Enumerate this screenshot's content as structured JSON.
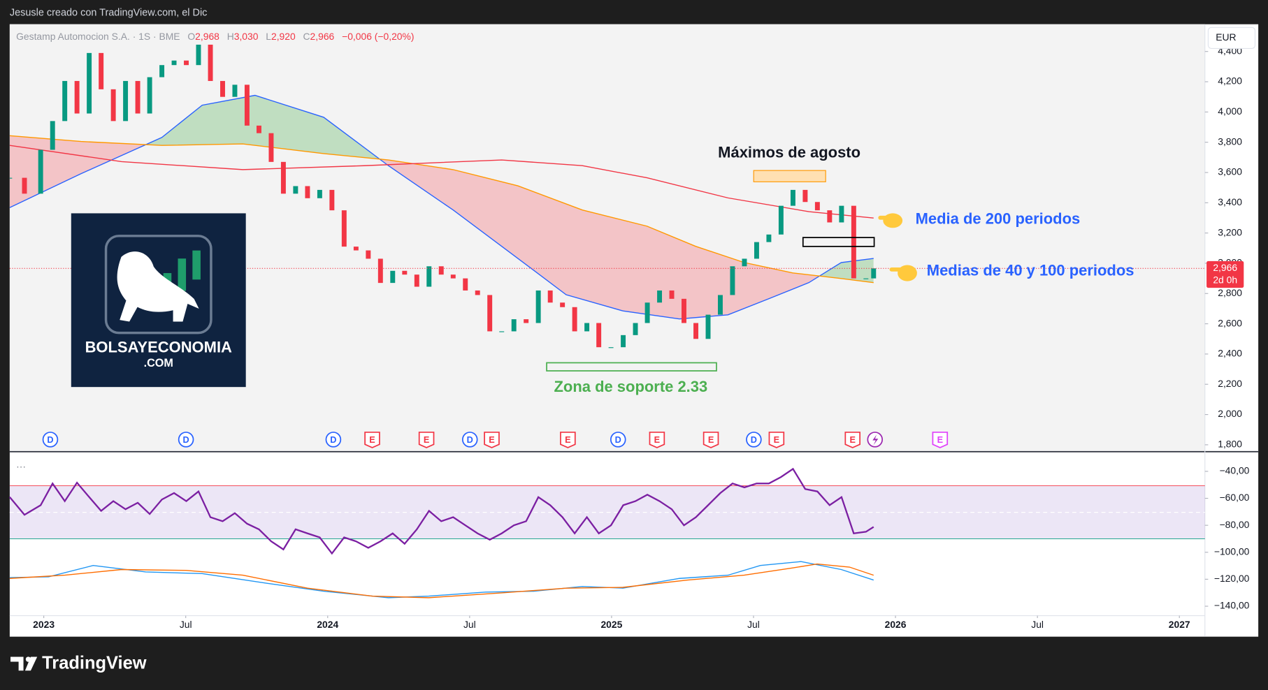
{
  "header": {
    "caption": "Jesusle creado con TradingView.com, el Dic",
    "currency": "EUR",
    "brand": "TradingView",
    "legend": {
      "name": "Gestamp Automocion S.A. · 1S · BME",
      "ohlc_labels": [
        "O",
        "H",
        "L",
        "C"
      ],
      "o": "2,968",
      "h": "3,030",
      "l": "2,920",
      "c": "2,966",
      "change": "−0,006 (−0,20%)"
    },
    "last_price_label": "2,966",
    "countdown": "2d 0h"
  },
  "logo": {
    "name": "BOLSAYECONOMIA",
    "domain": ".COM"
  },
  "chart_data": {
    "type": "candlestick",
    "up_color": "#089981",
    "down_color": "#f23645",
    "xlim": [
      2022.88,
      2027.09
    ],
    "xticks": [
      2023,
      {
        "value": 2023.5,
        "label": "Jul"
      },
      2024,
      {
        "value": 2024.5,
        "label": "Jul"
      },
      2025,
      {
        "value": 2025.5,
        "label": "Jul"
      },
      2026,
      {
        "value": 2026.5,
        "label": "Jul"
      },
      2027
    ],
    "ylim": [
      1760,
      4580
    ],
    "yticks": [
      {
        "value": 1800,
        "label": "1,800"
      },
      {
        "value": 2000,
        "label": "2,000"
      },
      {
        "value": 2200,
        "label": "2,200"
      },
      {
        "value": 2400,
        "label": "2,400"
      },
      {
        "value": 2600,
        "label": "2,600"
      },
      {
        "value": 2800,
        "label": "2,800"
      },
      {
        "value": 3000,
        "label": "3,000"
      },
      {
        "value": 3200,
        "label": "3,200"
      },
      {
        "value": 3400,
        "label": "3,400"
      },
      {
        "value": 3600,
        "label": "3,600"
      },
      {
        "value": 3800,
        "label": "3,800"
      },
      {
        "value": 4000,
        "label": "4,000"
      },
      {
        "value": 4200,
        "label": "4,200"
      },
      {
        "value": 4400,
        "label": "4,400"
      }
    ],
    "x": [
      2022.88,
      2022.932,
      2022.989,
      2023.031,
      2023.074,
      2023.117,
      2023.16,
      2023.202,
      2023.245,
      2023.288,
      2023.331,
      2023.373,
      2023.416,
      2023.459,
      2023.502,
      2023.545,
      2023.587,
      2023.63,
      2023.673,
      2023.716,
      2023.758,
      2023.801,
      2023.844,
      2023.887,
      2023.929,
      2023.972,
      2024.015,
      2024.058,
      2024.1,
      2024.143,
      2024.186,
      2024.229,
      2024.271,
      2024.314,
      2024.357,
      2024.4,
      2024.442,
      2024.485,
      2024.528,
      2024.571,
      2024.613,
      2024.656,
      2024.699,
      2024.742,
      2024.784,
      2024.827,
      2024.87,
      2024.913,
      2024.955,
      2024.998,
      2025.041,
      2025.084,
      2025.126,
      2025.169,
      2025.212,
      2025.255,
      2025.297,
      2025.34,
      2025.383,
      2025.426,
      2025.468,
      2025.511,
      2025.554,
      2025.597,
      2025.639,
      2025.682,
      2025.725,
      2025.768,
      2025.81,
      2025.853,
      2025.896,
      2025.923
    ],
    "values": [
      3565,
      3460,
      3750,
      3940,
      4205,
      3990,
      4390,
      4150,
      3940,
      4205,
      3990,
      4230,
      4310,
      4340,
      4310,
      4445,
      4205,
      4100,
      4180,
      3910,
      3860,
      3670,
      3460,
      3510,
      3430,
      3485,
      3350,
      3110,
      3085,
      3030,
      2870,
      2950,
      2925,
      2845,
      2980,
      2925,
      2900,
      2820,
      2790,
      2550,
      2550,
      2630,
      2605,
      2820,
      2740,
      2710,
      2550,
      2605,
      2445,
      2445,
      2525,
      2605,
      2740,
      2820,
      2765,
      2605,
      2500,
      2660,
      2790,
      2980,
      3030,
      3140,
      3190,
      3380,
      3485,
      3405,
      3350,
      3270,
      3380,
      2900,
      2900,
      2966
    ],
    "overlays": [
      {
        "color": "#2962ff",
        "x": [
          2022.88,
          2023.131,
          2023.416,
          2023.558,
          2023.744,
          2023.986,
          2024.214,
          2024.442,
          2024.67,
          2024.84,
          2025.04,
          2025.239,
          2025.41,
          2025.553,
          2025.695,
          2025.809,
          2025.923
        ],
        "values": [
          3368,
          3592,
          3832,
          4045,
          4110,
          3965,
          3645,
          3352,
          3032,
          2792,
          2685,
          2632,
          2659,
          2765,
          2872,
          3005,
          3032
        ]
      },
      {
        "color": "#ff9800",
        "x": [
          2022.88,
          2023.131,
          2023.416,
          2023.701,
          2023.986,
          2024.214,
          2024.442,
          2024.67,
          2024.897,
          2025.125,
          2025.296,
          2025.467,
          2025.638,
          2025.809,
          2025.923
        ],
        "values": [
          3843,
          3805,
          3779,
          3789,
          3725,
          3683,
          3619,
          3512,
          3352,
          3245,
          3112,
          3005,
          2936,
          2899,
          2872
        ]
      },
      {
        "color": "#f23645",
        "x": [
          2022.88,
          2023.274,
          2023.701,
          2024.128,
          2024.613,
          2024.897,
          2025.125,
          2025.41,
          2025.695,
          2025.923
        ],
        "values": [
          3779,
          3672,
          3619,
          3645,
          3683,
          3645,
          3565,
          3432,
          3341,
          3299
        ]
      }
    ],
    "band_colors": {
      "above": "#4caf50",
      "below": "#f23645"
    },
    "y2lim": [
      -147,
      -26
    ],
    "y2ticks": [
      {
        "value": -40,
        "label": "−40,00"
      },
      {
        "value": -60,
        "label": "−60,00"
      },
      {
        "value": -80,
        "label": "−80,00"
      },
      {
        "value": -100,
        "label": "−100,00"
      },
      {
        "value": -120,
        "label": "−120,00"
      },
      {
        "value": -140,
        "label": "−140,00"
      }
    ],
    "rsi": {
      "color": "#7b1fa2",
      "levels": [
        -50.7,
        -70.4,
        -90
      ],
      "values": [
        -59.1,
        -72.2,
        -65.1,
        -49.0,
        -62.1,
        -48.4,
        -59.1,
        -69.3,
        -62.1,
        -68.1,
        -63.3,
        -71.6,
        -60.9,
        -56.1,
        -62.1,
        -54.9,
        -74.0,
        -77.0,
        -71.0,
        -78.8,
        -83.0,
        -91.9,
        -97.9,
        -83.0,
        -86.0,
        -89.0,
        -100.9,
        -89.0,
        -91.9,
        -96.7,
        -91.9,
        -86.0,
        -93.7,
        -83.0,
        -69.3,
        -77.0,
        -74.0,
        -80.0,
        -86.0,
        -90.7,
        -86.0,
        -80.0,
        -77.0,
        -59.1,
        -65.1,
        -74.0,
        -86.0,
        -74.0,
        -86.0,
        -80.0,
        -65.1,
        -62.1,
        -57.3,
        -62.1,
        -68.1,
        -80.0,
        -74.0,
        -65.1,
        -56.1,
        -49.0,
        -51.9,
        -49.0,
        -49.0,
        -44.2,
        -38.2,
        -53.1,
        -54.9,
        -65.1,
        -59.1,
        -86.0,
        -84.8,
        -81.2
      ]
    },
    "macd": [
      {
        "color": "#2196f3",
        "x": [
          2022.88,
          2023.017,
          2023.174,
          2023.359,
          2023.558,
          2023.786,
          2023.986,
          2024.214,
          2024.356,
          2024.556,
          2024.726,
          2024.897,
          2025.04,
          2025.239,
          2025.41,
          2025.524,
          2025.667,
          2025.809,
          2025.923
        ],
        "values": [
          -118.8,
          -118.2,
          -109.8,
          -114.6,
          -115.8,
          -123.0,
          -128.9,
          -133.7,
          -132.5,
          -129.5,
          -128.9,
          -125.4,
          -126.6,
          -119.4,
          -117.0,
          -109.8,
          -106.9,
          -112.8,
          -120.6
        ]
      },
      {
        "color": "#ff6d00",
        "x": [
          2022.88,
          2023.074,
          2023.274,
          2023.501,
          2023.701,
          2023.929,
          2024.157,
          2024.356,
          2024.613,
          2024.84,
          2025.04,
          2025.268,
          2025.467,
          2025.638,
          2025.724,
          2025.838,
          2025.923
        ],
        "values": [
          -119.4,
          -117.0,
          -112.8,
          -113.4,
          -117.0,
          -126.6,
          -132.5,
          -133.7,
          -130.1,
          -126.6,
          -126.0,
          -120.6,
          -117.0,
          -111.6,
          -108.7,
          -111.0,
          -117.0
        ]
      }
    ],
    "events": [
      {
        "x": 2023.023,
        "label": "D",
        "color": "#2962ff"
      },
      {
        "x": 2023.501,
        "label": "D",
        "color": "#2962ff"
      },
      {
        "x": 2024.02,
        "label": "D",
        "color": "#2962ff"
      },
      {
        "x": 2024.157,
        "label": "E",
        "color": "#f23645"
      },
      {
        "x": 2024.348,
        "label": "E",
        "color": "#f23645"
      },
      {
        "x": 2024.501,
        "label": "D",
        "color": "#2962ff"
      },
      {
        "x": 2024.578,
        "label": "E",
        "color": "#f23645"
      },
      {
        "x": 2024.846,
        "label": "E",
        "color": "#f23645"
      },
      {
        "x": 2025.023,
        "label": "D",
        "color": "#2962ff"
      },
      {
        "x": 2025.16,
        "label": "E",
        "color": "#f23645"
      },
      {
        "x": 2025.35,
        "label": "E",
        "color": "#f23645"
      },
      {
        "x": 2025.501,
        "label": "D",
        "color": "#2962ff"
      },
      {
        "x": 2025.581,
        "label": "E",
        "color": "#f23645"
      },
      {
        "x": 2025.849,
        "label": "E",
        "color": "#f23645"
      },
      {
        "x": 2026.157,
        "label": "E",
        "color": "#e040fb"
      }
    ],
    "annotations": [
      "Máximos de agosto",
      "Zona de soporte 2.33",
      "Media de 200 periodos",
      "Medias de 40 y 100 periodos"
    ]
  }
}
